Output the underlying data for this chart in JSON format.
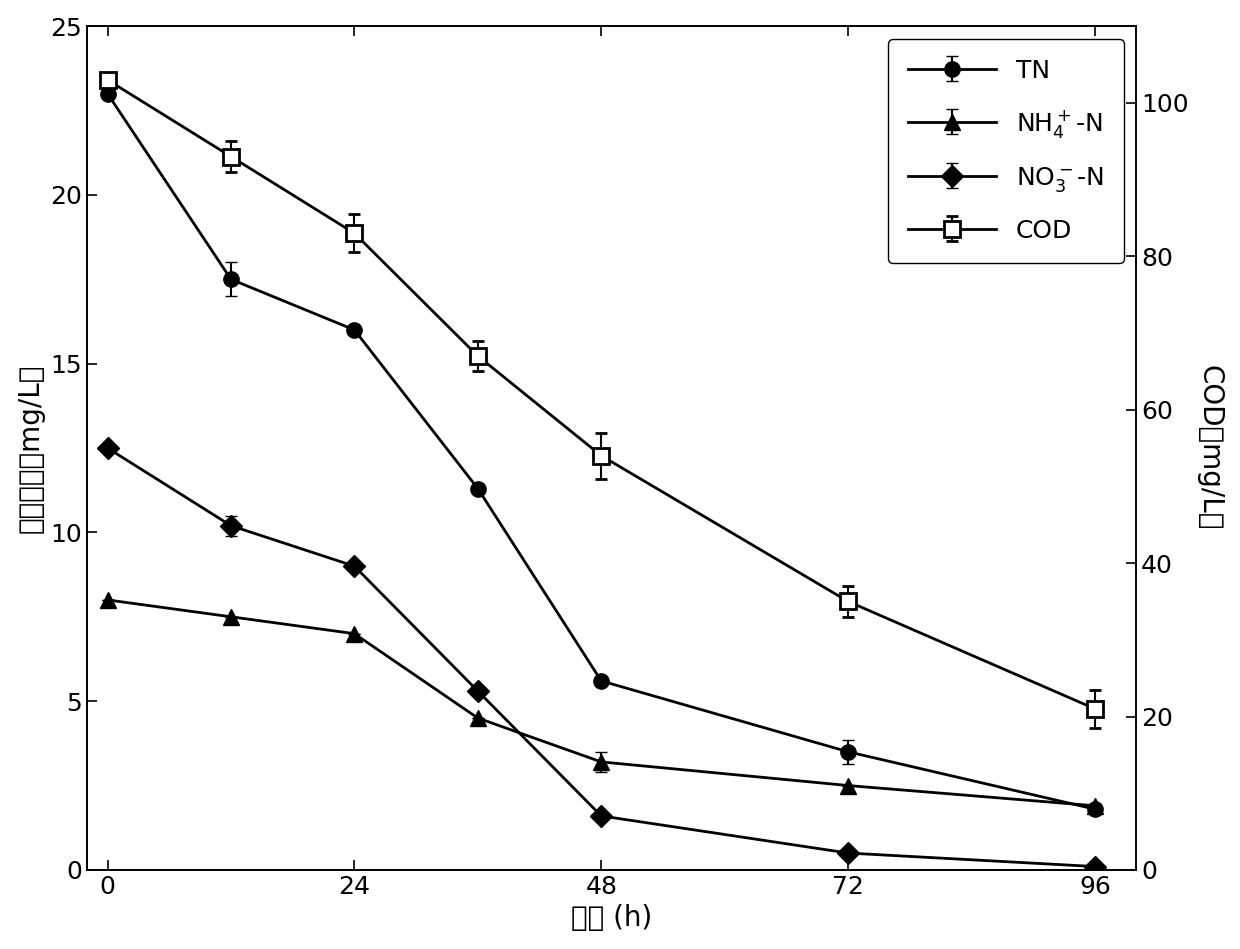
{
  "x": [
    0,
    12,
    24,
    36,
    48,
    72,
    96
  ],
  "TN": [
    23.0,
    17.5,
    16.0,
    11.3,
    5.6,
    3.5,
    1.8
  ],
  "TN_err": [
    0,
    0.5,
    0,
    0,
    0,
    0.35,
    0
  ],
  "NH4_N": [
    8.0,
    7.5,
    7.0,
    4.5,
    3.2,
    2.5,
    1.9
  ],
  "NH4_N_err": [
    0,
    0,
    0,
    0,
    0.3,
    0,
    0
  ],
  "NO3_N": [
    12.5,
    10.2,
    9.0,
    5.3,
    1.6,
    0.5,
    0.1
  ],
  "NO3_N_err": [
    0,
    0.3,
    0,
    0,
    0,
    0,
    0
  ],
  "COD": [
    103,
    93,
    83,
    67,
    54,
    35,
    21
  ],
  "COD_err": [
    0,
    2.0,
    2.5,
    2.0,
    3.0,
    2.0,
    2.5
  ],
  "xlabel": "时间 (h)",
  "ylabel_left": "氮类浓度（mg/L）",
  "ylabel_right": "COD（mg/L）",
  "legend_TN": "TN",
  "legend_NH4": "NH$_4^+$-N",
  "legend_NO3": "NO$_3^-$-N",
  "legend_COD": "COD",
  "xlim": [
    -2,
    100
  ],
  "ylim_left": [
    0,
    25
  ],
  "ylim_right": [
    0,
    110
  ],
  "xticks": [
    0,
    24,
    48,
    72,
    96
  ],
  "yticks_left": [
    0,
    5,
    10,
    15,
    20,
    25
  ],
  "yticks_right": [
    0,
    20,
    40,
    60,
    80,
    100
  ],
  "color": "#000000",
  "fontsize_label": 20,
  "fontsize_tick": 18,
  "fontsize_legend": 18,
  "linewidth": 2.0,
  "markersize": 11
}
